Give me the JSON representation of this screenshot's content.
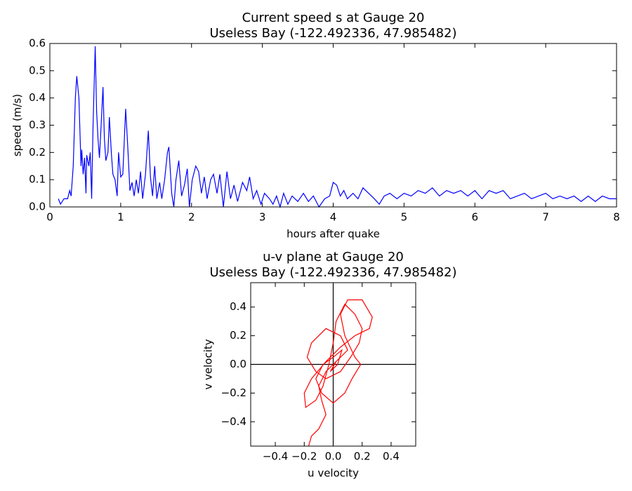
{
  "chart_data": [
    {
      "type": "line",
      "title": "Current speed s at Gauge 20",
      "subtitle": "Useless Bay  (-122.492336, 47.985482)",
      "xlabel": "hours after quake",
      "ylabel": "speed (m/s)",
      "color": "#0000ff",
      "grid": false,
      "xlim": [
        0,
        8
      ],
      "xticks": [
        0,
        1,
        2,
        3,
        4,
        5,
        6,
        7,
        8
      ],
      "ylim": [
        0,
        0.6
      ],
      "yticks": [
        {
          "value": 0,
          "label": "0.0"
        },
        0.1,
        0.2,
        0.3,
        0.4,
        0.5,
        0.6
      ],
      "x": [
        0.12,
        0.15,
        0.2,
        0.25,
        0.28,
        0.3,
        0.33,
        0.36,
        0.38,
        0.41,
        0.44,
        0.45,
        0.47,
        0.49,
        0.51,
        0.52,
        0.55,
        0.57,
        0.59,
        0.61,
        0.64,
        0.66,
        0.68,
        0.7,
        0.72,
        0.75,
        0.77,
        0.79,
        0.82,
        0.84,
        0.87,
        0.89,
        0.92,
        0.95,
        0.97,
        1.0,
        1.03,
        1.07,
        1.1,
        1.13,
        1.16,
        1.19,
        1.22,
        1.25,
        1.28,
        1.31,
        1.35,
        1.39,
        1.42,
        1.45,
        1.48,
        1.51,
        1.55,
        1.58,
        1.62,
        1.66,
        1.68,
        1.72,
        1.75,
        1.78,
        1.82,
        1.86,
        1.9,
        1.94,
        1.97,
        2.01,
        2.06,
        2.1,
        2.14,
        2.18,
        2.22,
        2.27,
        2.31,
        2.36,
        2.4,
        2.45,
        2.5,
        2.55,
        2.6,
        2.65,
        2.72,
        2.78,
        2.82,
        2.87,
        2.92,
        2.98,
        3.03,
        3.1,
        3.15,
        3.2,
        3.25,
        3.3,
        3.36,
        3.42,
        3.5,
        3.58,
        3.65,
        3.72,
        3.8,
        3.88,
        3.95,
        4.0,
        4.05,
        4.1,
        4.15,
        4.2,
        4.28,
        4.35,
        4.42,
        4.5,
        4.58,
        4.65,
        4.72,
        4.8,
        4.9,
        5.0,
        5.1,
        5.2,
        5.3,
        5.4,
        5.5,
        5.6,
        5.7,
        5.8,
        5.9,
        6.0,
        6.1,
        6.2,
        6.3,
        6.4,
        6.5,
        6.6,
        6.7,
        6.8,
        6.9,
        7.0,
        7.1,
        7.2,
        7.3,
        7.4,
        7.5,
        7.6,
        7.7,
        7.8,
        7.9,
        8.0
      ],
      "values": [
        0.03,
        0.01,
        0.03,
        0.03,
        0.06,
        0.04,
        0.15,
        0.4,
        0.48,
        0.4,
        0.15,
        0.21,
        0.12,
        0.18,
        0.05,
        0.19,
        0.15,
        0.2,
        0.03,
        0.3,
        0.59,
        0.35,
        0.25,
        0.18,
        0.28,
        0.44,
        0.25,
        0.17,
        0.2,
        0.33,
        0.19,
        0.12,
        0.1,
        0.04,
        0.2,
        0.11,
        0.12,
        0.36,
        0.22,
        0.06,
        0.09,
        0.04,
        0.1,
        0.05,
        0.13,
        0.03,
        0.12,
        0.28,
        0.11,
        0.04,
        0.15,
        0.03,
        0.09,
        0.03,
        0.1,
        0.2,
        0.22,
        0.05,
        0.0,
        0.1,
        0.17,
        0.04,
        0.08,
        0.14,
        0.0,
        0.1,
        0.15,
        0.13,
        0.05,
        0.11,
        0.03,
        0.1,
        0.12,
        0.05,
        0.12,
        0.0,
        0.13,
        0.03,
        0.08,
        0.02,
        0.09,
        0.06,
        0.11,
        0.03,
        0.06,
        0.01,
        0.05,
        0.03,
        0.01,
        0.04,
        0.0,
        0.05,
        0.01,
        0.04,
        0.02,
        0.05,
        0.02,
        0.04,
        0.0,
        0.03,
        0.04,
        0.09,
        0.08,
        0.04,
        0.06,
        0.03,
        0.05,
        0.03,
        0.07,
        0.05,
        0.03,
        0.01,
        0.04,
        0.05,
        0.03,
        0.05,
        0.04,
        0.06,
        0.05,
        0.07,
        0.04,
        0.06,
        0.05,
        0.06,
        0.04,
        0.06,
        0.03,
        0.06,
        0.05,
        0.06,
        0.03,
        0.04,
        0.05,
        0.03,
        0.04,
        0.05,
        0.03,
        0.04,
        0.03,
        0.04,
        0.02,
        0.04,
        0.02,
        0.04,
        0.03,
        0.03
      ]
    },
    {
      "type": "line",
      "title": "u-v plane at Gauge 20",
      "subtitle": "Useless Bay  (-122.492336, 47.985482)",
      "xlabel": "u velocity",
      "ylabel": "v velocity",
      "color": "#ff0000",
      "grid": false,
      "zero_lines": true,
      "xlim": [
        -0.57,
        0.57
      ],
      "xticks": [
        {
          "value": -0.4,
          "label": "−0.4"
        },
        {
          "value": -0.2,
          "label": "−0.2"
        },
        {
          "value": 0,
          "label": "0.0"
        },
        0.2,
        0.4
      ],
      "ylim": [
        -0.57,
        0.57
      ],
      "yticks": [
        {
          "value": -0.4,
          "label": "−0.4"
        },
        {
          "value": -0.2,
          "label": "−0.2"
        },
        {
          "value": 0,
          "label": "0.0"
        },
        0.2,
        0.4
      ],
      "x": [
        -0.17,
        -0.15,
        -0.1,
        -0.05,
        -0.08,
        -0.1,
        -0.05,
        0.0,
        0.05,
        0.1,
        0.05,
        -0.05,
        -0.15,
        -0.18,
        -0.12,
        -0.05,
        0.05,
        0.12,
        0.18,
        0.2,
        0.15,
        0.08,
        0.02,
        0.0,
        -0.03,
        -0.07,
        -0.12,
        -0.19,
        -0.2,
        -0.15,
        -0.05,
        0.05,
        0.15,
        0.25,
        0.27,
        0.2,
        0.1,
        0.05,
        0.08,
        0.15,
        0.19,
        0.13,
        0.08,
        0.0,
        -0.08,
        -0.12,
        -0.07,
        0.0,
        0.06,
        0.03,
        -0.02,
        0.02,
        0.0
      ],
      "values": [
        -0.57,
        -0.5,
        -0.45,
        -0.35,
        -0.25,
        -0.15,
        -0.05,
        0.0,
        0.05,
        0.1,
        0.2,
        0.25,
        0.15,
        0.05,
        -0.05,
        -0.1,
        -0.05,
        0.05,
        0.15,
        0.25,
        0.35,
        0.42,
        0.3,
        0.15,
        0.0,
        -0.15,
        -0.25,
        -0.3,
        -0.2,
        -0.1,
        0.02,
        0.12,
        0.2,
        0.25,
        0.33,
        0.45,
        0.45,
        0.35,
        0.2,
        0.05,
        0.0,
        -0.1,
        -0.2,
        -0.27,
        -0.2,
        -0.1,
        0.0,
        0.05,
        0.1,
        0.0,
        -0.05,
        0.02,
        0.0
      ]
    }
  ]
}
